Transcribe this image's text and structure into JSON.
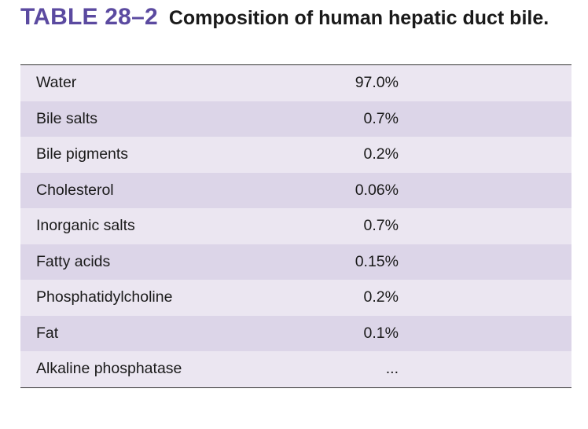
{
  "caption": {
    "label": "TABLE 28–2",
    "title": "Composition of human hepatic duct bile."
  },
  "table": {
    "rows": [
      {
        "component": "Water",
        "value": "97.0%"
      },
      {
        "component": "Bile salts",
        "value": "0.7%"
      },
      {
        "component": "Bile pigments",
        "value": "0.2%"
      },
      {
        "component": "Cholesterol",
        "value": "0.06%"
      },
      {
        "component": "Inorganic salts",
        "value": "0.7%"
      },
      {
        "component": "Fatty acids",
        "value": "0.15%"
      },
      {
        "component": "Phosphatidylcholine",
        "value": "0.2%"
      },
      {
        "component": "Fat",
        "value": "0.1%"
      },
      {
        "component": "Alkaline phosphatase",
        "value": "..."
      }
    ]
  },
  "colors": {
    "label_purple": "#5b4aa0",
    "row_light": "#ebe6f1",
    "row_dark": "#dcd5e8"
  }
}
